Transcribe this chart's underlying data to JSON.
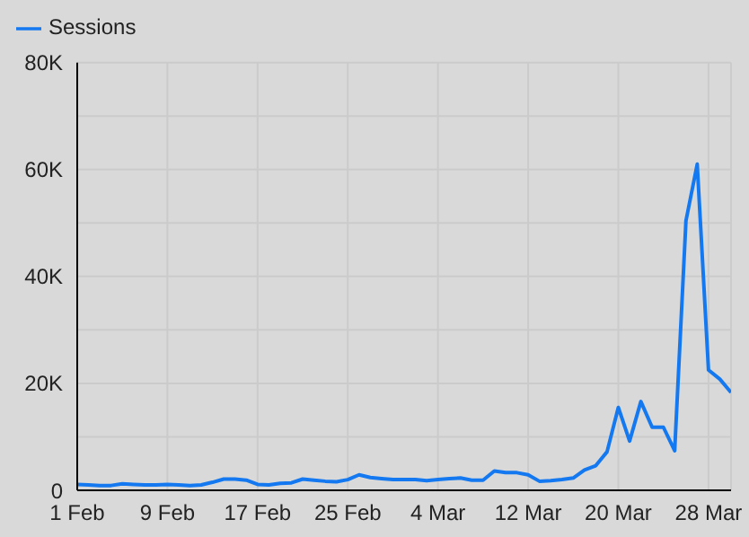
{
  "chart_data": {
    "type": "line",
    "x": [
      "--02-01",
      "--02-02",
      "--02-03",
      "--02-04",
      "--02-05",
      "--02-06",
      "--02-07",
      "--02-08",
      "--02-09",
      "--02-10",
      "--02-11",
      "--02-12",
      "--02-13",
      "--02-14",
      "--02-15",
      "--02-16",
      "--02-17",
      "--02-18",
      "--02-19",
      "--02-20",
      "--02-21",
      "--02-22",
      "--02-23",
      "--02-24",
      "--02-25",
      "--02-26",
      "--02-27",
      "--02-28",
      "--02-29",
      "--03-01",
      "--03-02",
      "--03-03",
      "--03-04",
      "--03-05",
      "--03-06",
      "--03-07",
      "--03-08",
      "--03-09",
      "--03-10",
      "--03-11",
      "--03-12",
      "--03-13",
      "--03-14",
      "--03-15",
      "--03-16",
      "--03-17",
      "--03-18",
      "--03-19",
      "--03-20",
      "--03-21",
      "--03-22",
      "--03-23",
      "--03-24",
      "--03-25",
      "--03-26",
      "--03-27",
      "--03-28",
      "--03-29",
      "--03-30"
    ],
    "series": [
      {
        "name": "Sessions",
        "color": "#1479f0",
        "values": [
          1100,
          1000,
          900,
          900,
          1200,
          1100,
          1000,
          1000,
          1100,
          1000,
          900,
          1000,
          1500,
          2100,
          2100,
          1900,
          1100,
          1000,
          1300,
          1400,
          2100,
          1900,
          1700,
          1600,
          2000,
          2900,
          2400,
          2200,
          2000,
          2000,
          2000,
          1800,
          2000,
          2200,
          2300,
          1900,
          1900,
          3600,
          3300,
          3300,
          2900,
          1700,
          1800,
          2000,
          2300,
          3800,
          4600,
          7200,
          15500,
          9200,
          16600,
          11800,
          11800,
          7400,
          50400,
          61000,
          22500,
          20800,
          18300
        ]
      }
    ],
    "xlim": [
      "--02-01",
      "--03-30"
    ],
    "xticks": [
      {
        "value": "--02-01",
        "label": "1 Feb"
      },
      {
        "value": "--02-09",
        "label": "9 Feb"
      },
      {
        "value": "--02-17",
        "label": "17 Feb"
      },
      {
        "value": "--02-25",
        "label": "25 Feb"
      },
      {
        "value": "--03-04",
        "label": "4 Mar"
      },
      {
        "value": "--03-12",
        "label": "12 Mar"
      },
      {
        "value": "--03-20",
        "label": "20 Mar"
      },
      {
        "value": "--03-28",
        "label": "28 Mar"
      }
    ],
    "ylim": [
      0,
      80000
    ],
    "yticks": [
      0,
      {
        "value": 10000,
        "label": null
      },
      {
        "value": 20000,
        "label": "20K"
      },
      {
        "value": 30000,
        "label": null
      },
      {
        "value": 40000,
        "label": "40K"
      },
      {
        "value": 50000,
        "label": null
      },
      {
        "value": 60000,
        "label": "60K"
      },
      {
        "value": 70000,
        "label": null
      },
      {
        "value": 80000,
        "label": "80K"
      }
    ],
    "grid": true,
    "legend": "top left",
    "marker": "none",
    "line_style": "solid"
  }
}
